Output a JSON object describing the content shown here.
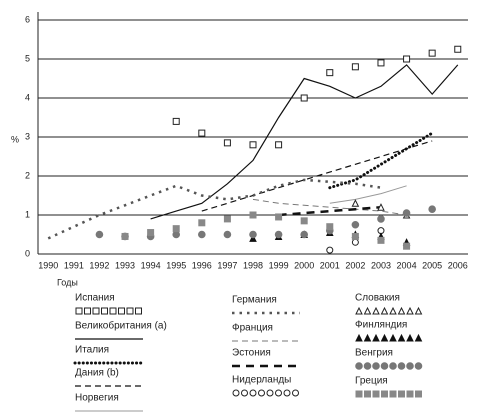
{
  "chart_data": {
    "type": "line",
    "x_label": "Годы",
    "y_label": "%",
    "x": [
      1990,
      1991,
      1992,
      1993,
      1994,
      1995,
      1996,
      1997,
      1998,
      1999,
      2000,
      2001,
      2002,
      2003,
      2004,
      2005,
      2006
    ],
    "xlim": [
      1989.6,
      2006.4
    ],
    "ylim": [
      0,
      6
    ],
    "yticks": [
      0,
      1,
      2,
      3,
      4,
      5,
      6
    ],
    "grid": true,
    "series": [
      {
        "name": "Испания",
        "color": "#222222",
        "values": [
          null,
          null,
          null,
          null,
          null,
          3.4,
          3.1,
          2.85,
          2.8,
          2.8,
          4.0,
          4.65,
          4.8,
          4.9,
          5.0,
          5.15,
          5.25
        ]
      },
      {
        "name": "Великобритания (а)",
        "color": "#111111",
        "values": [
          null,
          null,
          null,
          null,
          0.9,
          1.1,
          1.3,
          1.8,
          2.4,
          3.5,
          4.5,
          4.3,
          4.0,
          4.3,
          4.85,
          4.1,
          4.85
        ]
      },
      {
        "name": "Италия",
        "color": "#111111",
        "values": [
          null,
          null,
          null,
          null,
          null,
          null,
          null,
          null,
          null,
          null,
          null,
          1.7,
          1.9,
          2.3,
          2.7,
          3.1,
          null
        ]
      },
      {
        "name": "Дания (b)",
        "color": "#111111",
        "values": [
          null,
          null,
          null,
          null,
          null,
          null,
          1.1,
          1.3,
          1.5,
          1.7,
          1.9,
          2.1,
          2.3,
          2.5,
          2.7,
          2.9,
          null
        ]
      },
      {
        "name": "Норвегия",
        "color": "#999999",
        "values": [
          null,
          null,
          null,
          null,
          null,
          null,
          null,
          null,
          null,
          null,
          null,
          1.3,
          1.4,
          1.55,
          1.75,
          null,
          null
        ]
      },
      {
        "name": "Германия",
        "color": "#555555",
        "values": [
          0.4,
          0.7,
          1.0,
          1.25,
          1.5,
          1.75,
          1.5,
          1.4,
          1.5,
          1.75,
          1.9,
          1.85,
          1.8,
          1.7,
          null,
          null,
          null
        ]
      },
      {
        "name": "Франция",
        "color": "#777777",
        "values": [
          null,
          null,
          null,
          null,
          null,
          null,
          null,
          null,
          1.4,
          1.3,
          1.25,
          1.2,
          1.15,
          1.1,
          1.0,
          null,
          null
        ]
      },
      {
        "name": "Эстония",
        "color": "#111111",
        "values": [
          null,
          null,
          null,
          null,
          null,
          null,
          null,
          null,
          null,
          1.0,
          1.05,
          1.1,
          1.15,
          1.2,
          null,
          null,
          null
        ]
      },
      {
        "name": "Нидерланды",
        "color": "#222222",
        "values": [
          null,
          null,
          null,
          null,
          null,
          null,
          null,
          null,
          null,
          null,
          null,
          0.1,
          0.3,
          0.6,
          null,
          null,
          null
        ]
      },
      {
        "name": "Словакия",
        "color": "#222222",
        "values": [
          null,
          null,
          null,
          null,
          null,
          null,
          null,
          null,
          null,
          null,
          null,
          null,
          1.3,
          1.2,
          1.0,
          null,
          null
        ]
      },
      {
        "name": "Финляндия",
        "color": "#111111",
        "values": [
          null,
          null,
          null,
          null,
          null,
          null,
          null,
          null,
          0.4,
          0.45,
          0.5,
          0.55,
          0.5,
          0.45,
          0.3,
          null,
          null
        ]
      },
      {
        "name": "Венгрия",
        "color": "#777777",
        "values": [
          null,
          null,
          0.5,
          0.45,
          0.45,
          0.5,
          0.5,
          0.5,
          0.5,
          0.5,
          0.5,
          0.6,
          0.75,
          0.9,
          1.05,
          1.15,
          null
        ]
      },
      {
        "name": "Греция",
        "color": "#888888",
        "values": [
          null,
          null,
          null,
          0.45,
          0.55,
          0.65,
          0.8,
          0.9,
          1.0,
          0.95,
          0.85,
          0.7,
          0.45,
          0.35,
          0.2,
          null,
          null
        ]
      }
    ]
  }
}
